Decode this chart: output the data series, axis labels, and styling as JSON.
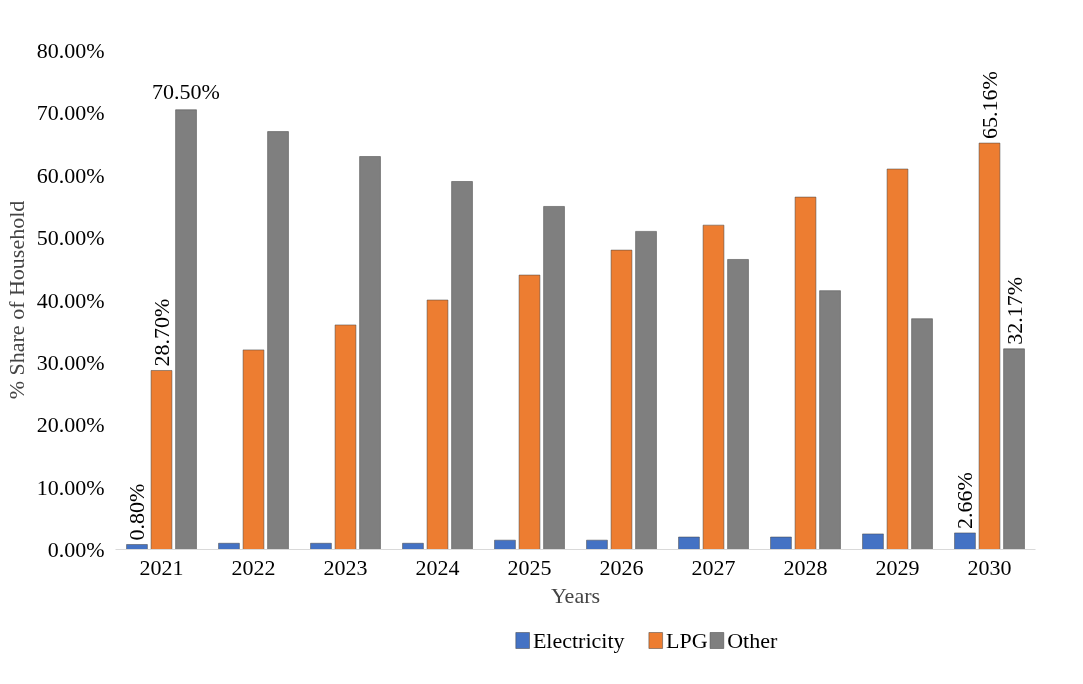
{
  "chart_data": {
    "type": "bar",
    "xlabel": "Years",
    "ylabel": "% Share of Household",
    "categories": [
      "2021",
      "2022",
      "2023",
      "2024",
      "2025",
      "2026",
      "2027",
      "2028",
      "2029",
      "2030"
    ],
    "series": [
      {
        "name": "Electricity",
        "color": "#4472c4",
        "values": [
          0.8,
          1,
          1,
          1,
          1.5,
          1.5,
          2,
          2,
          2.5,
          2.66
        ],
        "value_labels": [
          "0.80%",
          null,
          null,
          null,
          null,
          null,
          null,
          null,
          null,
          "2.66%"
        ]
      },
      {
        "name": "LPG",
        "color": "#ed7d31",
        "values": [
          28.7,
          32,
          36,
          40,
          44,
          48,
          52,
          56.5,
          61,
          65.16
        ],
        "value_labels": [
          "28.70%",
          null,
          null,
          null,
          null,
          null,
          null,
          null,
          null,
          "65.16%"
        ]
      },
      {
        "name": "Other",
        "color": "#7f7f7f",
        "values": [
          70.5,
          67,
          63,
          59,
          55,
          51,
          46.5,
          41.5,
          37,
          32.17
        ],
        "value_labels": [
          "70.50%",
          null,
          null,
          null,
          null,
          null,
          null,
          null,
          null,
          "32.17%"
        ]
      }
    ],
    "ylim": [
      0,
      80
    ],
    "yticks": [
      {
        "value": 0,
        "label": "0.00%"
      },
      {
        "value": 10,
        "label": "10.00%"
      },
      {
        "value": 20,
        "label": "20.00%"
      },
      {
        "value": 30,
        "label": "30.00%"
      },
      {
        "value": 40,
        "label": "40.00%"
      },
      {
        "value": 50,
        "label": "50.00%"
      },
      {
        "value": 60,
        "label": "60.00%"
      },
      {
        "value": 70,
        "label": "70.00%"
      },
      {
        "value": 80,
        "label": "80.00%"
      }
    ],
    "grid": false,
    "legend": "bottom"
  }
}
